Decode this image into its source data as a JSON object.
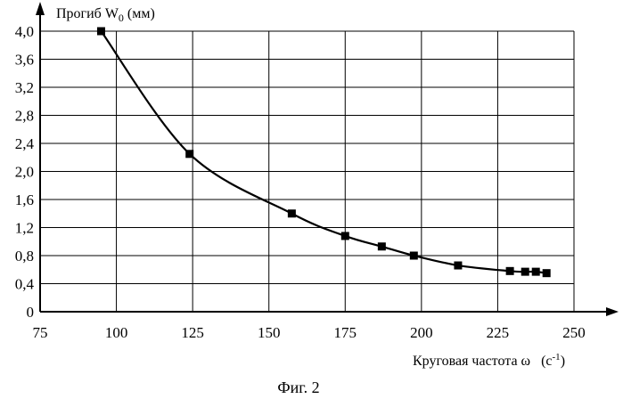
{
  "chart_data": {
    "type": "line",
    "ylabel_prefix": "Прогиб W",
    "ylabel_sub": "0",
    "ylabel_suffix": " (мм)",
    "xlabel_main": "Круговая частота ω",
    "xlabel_unit_base": "(с",
    "xlabel_unit_sup": "-1",
    "xlabel_unit_close": ")",
    "caption": "Фиг. 2",
    "xlim": [
      75,
      250
    ],
    "ylim": [
      0,
      4.0
    ],
    "x_ticks": [
      75,
      100,
      125,
      150,
      175,
      200,
      225,
      250
    ],
    "x_tick_labels": [
      "75",
      "100",
      "125",
      "150",
      "175",
      "200",
      "225",
      "250"
    ],
    "y_ticks": [
      0,
      0.4,
      0.8,
      1.2,
      1.6,
      2.0,
      2.4,
      2.8,
      3.2,
      3.6,
      4.0
    ],
    "y_tick_labels": [
      "0",
      "0,4",
      "0,8",
      "1,2",
      "1,6",
      "2,0",
      "2,4",
      "2,8",
      "3,2",
      "3,6",
      "4,0"
    ],
    "grid": true,
    "series": [
      {
        "name": "W0",
        "marker": "square",
        "color": "#000000",
        "x": [
          95,
          124,
          157.5,
          175,
          187,
          197.5,
          212,
          229,
          234,
          237.5,
          241
        ],
        "y": [
          4.0,
          2.25,
          1.4,
          1.08,
          0.93,
          0.8,
          0.66,
          0.58,
          0.57,
          0.57,
          0.55
        ]
      }
    ]
  }
}
